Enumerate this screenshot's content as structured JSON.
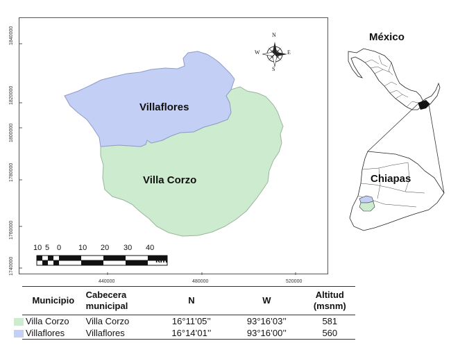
{
  "map": {
    "y_ticks": [
      "1840000",
      "1820000",
      "1800000",
      "1780000",
      "1760000",
      "1740000"
    ],
    "x_ticks": [
      "440000",
      "480000",
      "520000"
    ],
    "regions": [
      {
        "name": "Villaflores",
        "color": "#c3cff5"
      },
      {
        "name": "Villa Corzo",
        "color": "#cdebcf"
      }
    ],
    "compass": {
      "n": "N",
      "s": "S",
      "e": "E",
      "w": "W"
    },
    "scale_bar": {
      "labels": [
        "10",
        "5",
        "0",
        "10",
        "20",
        "30",
        "40"
      ],
      "unit": "km"
    }
  },
  "inset": {
    "country_label": "México",
    "state_label": "Chiapas"
  },
  "table": {
    "headers": {
      "municipio": "Municipio",
      "cabecera_line1": "Cabecera",
      "cabecera_line2": "municipal",
      "n": "N",
      "w": "W",
      "altitud_line1": "Altitud",
      "altitud_line2": "(msnm)"
    },
    "rows": [
      {
        "municipio": "Villa Corzo",
        "cabecera": "Villa Corzo",
        "n": "16°11’05’’",
        "w": "93°16’03’’",
        "altitud": "581",
        "color": "#cdebcf"
      },
      {
        "municipio": "Villaflores",
        "cabecera": "Villaflores",
        "n": "16°14’01’’",
        "w": "93°16’00’’",
        "altitud": "560",
        "color": "#c3cff5"
      }
    ]
  }
}
